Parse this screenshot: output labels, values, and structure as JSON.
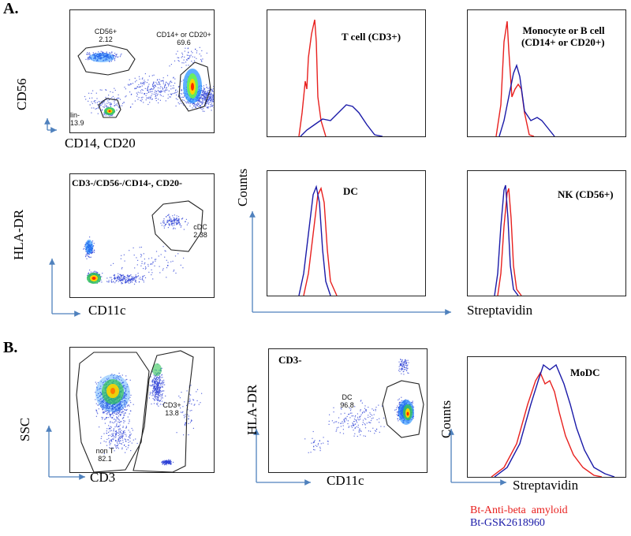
{
  "figure": {
    "panel_a": "A.",
    "panel_b": "B."
  },
  "plots": {
    "p1": {
      "ylabel": "CD56",
      "xlabel": "CD14, CD20",
      "gates": [
        {
          "name": "CD56+",
          "value": "2.12"
        },
        {
          "name": "CD14+ or CD20+",
          "value": "69.6"
        },
        {
          "name": "lin-",
          "value": "13.9"
        }
      ]
    },
    "p2": {
      "title": "CD3-/CD56-/CD14-, CD20-",
      "ylabel": "HLA-DR",
      "xlabel": "CD11c",
      "gates": [
        {
          "name": "cDC",
          "value": "2.38"
        }
      ]
    },
    "p3": {
      "title": "T cell (CD3+)"
    },
    "p4": {
      "title_line1": "Monocyte or B cell",
      "title_line2": "(CD14+ or CD20+)"
    },
    "p5": {
      "title": "DC"
    },
    "p6": {
      "title": "NK (CD56+)"
    },
    "hist_axes": {
      "ylabel": "Counts",
      "xlabel": "Streptavidin"
    },
    "p7": {
      "ylabel": "SSC",
      "xlabel": "CD3",
      "gates": [
        {
          "name": "CD3+",
          "value": "13.8"
        },
        {
          "name": "non T",
          "value": "82.1"
        }
      ]
    },
    "p8": {
      "title": "CD3-",
      "ylabel": "HLA-DR",
      "xlabel": "CD11c",
      "gates": [
        {
          "name": "DC",
          "value": "96.8"
        }
      ]
    },
    "p9": {
      "title": "MoDC",
      "ylabel": "Counts",
      "xlabel": "Streptavidin"
    }
  },
  "legend": [
    {
      "label": "Bt-Anti-beta  amyloid",
      "color": "#e8201e"
    },
    {
      "label": "Bt-GSK2618960",
      "color": "#1a1aa8"
    }
  ],
  "colors": {
    "axis_arrow": "#4f81bd",
    "red": "#e8201e",
    "blue": "#1a1aa8"
  }
}
